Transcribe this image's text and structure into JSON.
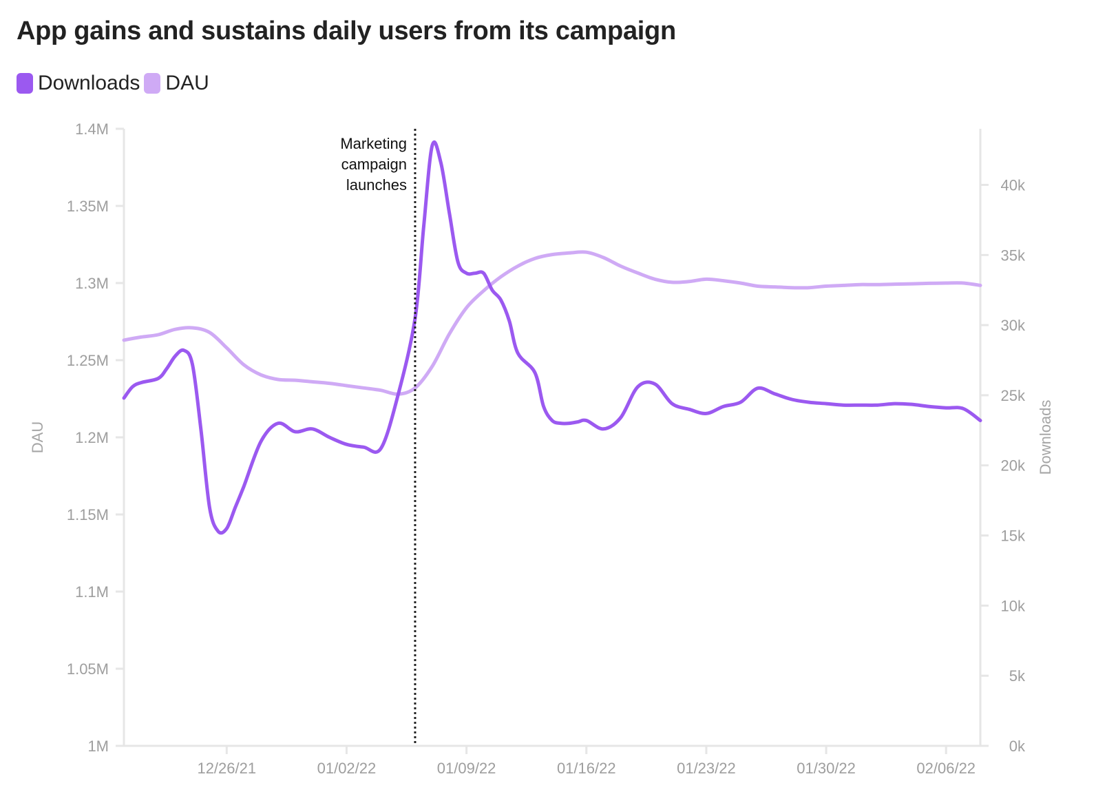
{
  "chart_data": {
    "type": "line",
    "title": "App gains and sustains daily users from its campaign",
    "legend": [
      {
        "name": "Downloads",
        "color": "#9b59f0"
      },
      {
        "name": "DAU",
        "color": "#cfaaf5"
      }
    ],
    "legend_position": "top-left",
    "x_labels": [
      "12/26/21",
      "01/02/22",
      "01/09/22",
      "01/16/22",
      "01/23/22",
      "01/30/22",
      "02/06/22"
    ],
    "x_label_days": [
      4,
      11,
      18,
      25,
      32,
      39,
      46
    ],
    "x_range_days": [
      -2,
      48
    ],
    "x_start_date": "12/22/21",
    "y_left": {
      "label": "DAU",
      "ylim": [
        1000000,
        1400000
      ],
      "ticks": [
        "1M",
        "1.05M",
        "1.1M",
        "1.15M",
        "1.2M",
        "1.25M",
        "1.3M",
        "1.35M",
        "1.4M"
      ],
      "tick_values": [
        1000000,
        1050000,
        1100000,
        1150000,
        1200000,
        1250000,
        1300000,
        1350000,
        1400000
      ]
    },
    "y_right": {
      "label": "Downloads",
      "ylim": [
        0,
        44000
      ],
      "ticks": [
        "0k",
        "5k",
        "10k",
        "15k",
        "20k",
        "25k",
        "30k",
        "35k",
        "40k"
      ],
      "tick_values": [
        0,
        5000,
        10000,
        15000,
        20000,
        25000,
        30000,
        35000,
        40000
      ]
    },
    "annotation": {
      "day": 15,
      "lines": [
        "Marketing",
        "campaign",
        "launches"
      ]
    },
    "series": [
      {
        "name": "DAU",
        "axis": "left",
        "color": "#cfaaf5",
        "x": [
          -2,
          -1,
          0,
          1,
          2,
          3,
          4,
          5,
          6,
          7,
          8,
          9,
          10,
          11,
          12,
          13,
          14,
          15,
          16,
          17,
          18,
          19,
          20,
          21,
          22,
          23,
          24,
          25,
          26,
          27,
          28,
          29,
          30,
          31,
          32,
          33,
          34,
          35,
          36,
          37,
          38,
          39,
          40,
          41,
          42,
          43,
          44,
          45,
          46,
          47,
          48
        ],
        "values": [
          1263000,
          1265000,
          1266500,
          1270000,
          1271000,
          1268000,
          1258000,
          1247000,
          1240500,
          1237500,
          1237000,
          1236000,
          1235000,
          1233500,
          1232000,
          1230500,
          1228000,
          1232000,
          1246000,
          1267000,
          1284000,
          1295000,
          1304000,
          1311000,
          1316000,
          1318500,
          1319500,
          1320000,
          1316500,
          1311000,
          1306500,
          1302500,
          1300500,
          1301000,
          1302500,
          1301500,
          1300000,
          1298000,
          1297500,
          1297000,
          1297000,
          1298000,
          1298500,
          1299000,
          1299000,
          1299300,
          1299500,
          1299800,
          1300000,
          1300000,
          1298500
        ]
      },
      {
        "name": "Downloads",
        "axis": "right",
        "color": "#9b59f0",
        "x": [
          -2,
          -1.5,
          -1,
          0,
          0.5,
          1,
          1.5,
          2,
          2.5,
          3,
          3.5,
          4,
          4.5,
          5,
          6,
          7,
          8,
          9,
          10,
          11,
          12,
          13,
          14,
          15,
          15.5,
          16,
          16.5,
          17,
          17.5,
          18,
          18.5,
          19,
          19.5,
          20,
          20.5,
          21,
          22,
          22.5,
          23,
          23.5,
          24,
          24.5,
          25,
          26,
          27,
          28,
          29,
          30,
          31,
          32,
          33,
          34,
          35,
          36,
          37,
          38,
          39,
          40,
          41,
          42,
          43,
          44,
          45,
          46,
          47,
          48
        ],
        "values": [
          24800,
          25600,
          25900,
          26200,
          26900,
          27800,
          28200,
          27200,
          22500,
          17000,
          15300,
          15500,
          17000,
          18500,
          21700,
          23000,
          22400,
          22600,
          22000,
          21500,
          21300,
          21200,
          25000,
          30500,
          37000,
          42800,
          41600,
          38000,
          34500,
          33700,
          33700,
          33700,
          32500,
          31800,
          30300,
          28000,
          26600,
          24200,
          23200,
          23000,
          23000,
          23100,
          23200,
          22600,
          23400,
          25600,
          25800,
          24400,
          24000,
          23700,
          24200,
          24500,
          25500,
          25100,
          24700,
          24500,
          24400,
          24300,
          24300,
          24300,
          24400,
          24350,
          24200,
          24100,
          24050,
          23200
        ]
      }
    ]
  }
}
